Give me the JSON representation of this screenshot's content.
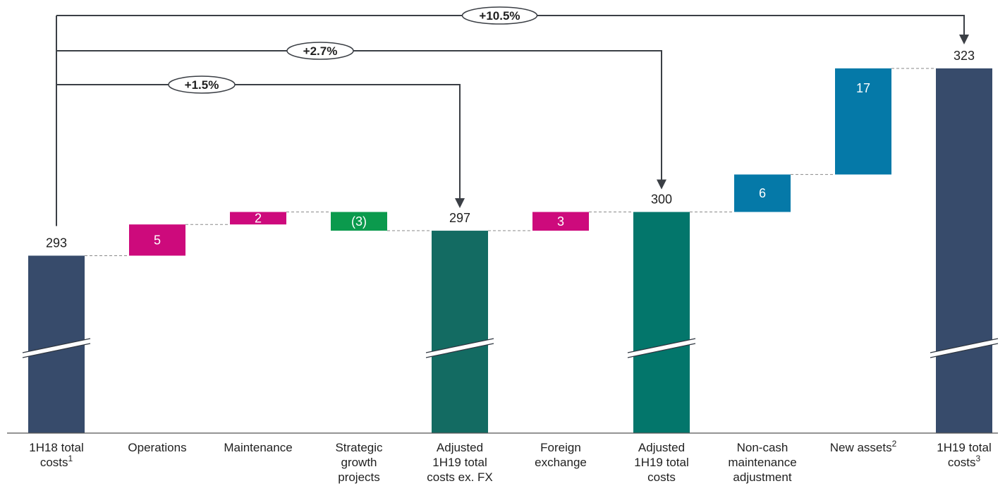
{
  "chart_data": {
    "type": "waterfall",
    "axis_break": true,
    "grid": false,
    "colors": {
      "total_dark": "#374b6b",
      "total_teal_dark": "#136b62",
      "total_teal": "#03766b",
      "increase_magenta": "#cd0a7c",
      "decrease_green": "#0b9a4d",
      "increase_blue": "#0579a8",
      "connector": "#8a8a8a",
      "bracket": "#3b3f45"
    },
    "categories": [
      {
        "label": "1H18 total costs",
        "label_lines": [
          "1H18 total",
          "costs"
        ],
        "superscript": "1",
        "kind": "total",
        "color_key": "total_dark",
        "value": 293,
        "label_text": "293",
        "label_pos": "above"
      },
      {
        "label": "Operations",
        "label_lines": [
          "Operations"
        ],
        "superscript": "",
        "kind": "delta",
        "color_key": "increase_magenta",
        "value": 5,
        "label_text": "5",
        "label_pos": "inside"
      },
      {
        "label": "Maintenance",
        "label_lines": [
          "Maintenance"
        ],
        "superscript": "",
        "kind": "delta",
        "color_key": "increase_magenta",
        "value": 2,
        "label_text": "2",
        "label_pos": "inside"
      },
      {
        "label": "Strategic growth projects",
        "label_lines": [
          "Strategic",
          "growth",
          "projects"
        ],
        "superscript": "",
        "kind": "delta",
        "color_key": "decrease_green",
        "value": -3,
        "label_text": "(3)",
        "label_pos": "inside"
      },
      {
        "label": "Adjusted 1H19 total costs ex. FX",
        "label_lines": [
          "Adjusted",
          "1H19 total",
          "costs ex. FX"
        ],
        "superscript": "",
        "kind": "total",
        "color_key": "total_teal_dark",
        "value": 297,
        "label_text": "297",
        "label_pos": "above"
      },
      {
        "label": "Foreign exchange",
        "label_lines": [
          "Foreign",
          "exchange"
        ],
        "superscript": "",
        "kind": "delta",
        "color_key": "increase_magenta",
        "value": 3,
        "label_text": "3",
        "label_pos": "inside"
      },
      {
        "label": "Adjusted 1H19 total costs",
        "label_lines": [
          "Adjusted",
          "1H19 total",
          "costs"
        ],
        "superscript": "",
        "kind": "total",
        "color_key": "total_teal",
        "value": 300,
        "label_text": "300",
        "label_pos": "above"
      },
      {
        "label": "Non-cash maintenance adjustment",
        "label_lines": [
          "Non-cash",
          "maintenance",
          "adjustment"
        ],
        "superscript": "",
        "kind": "delta",
        "color_key": "increase_blue",
        "value": 6,
        "label_text": "6",
        "label_pos": "inside"
      },
      {
        "label": "New assets",
        "label_lines": [
          "New assets"
        ],
        "superscript": "2",
        "kind": "delta",
        "color_key": "increase_blue",
        "value": 17,
        "label_text": "17",
        "label_pos": "inside"
      },
      {
        "label": "1H19 total costs",
        "label_lines": [
          "1H19 total",
          "costs"
        ],
        "superscript": "3",
        "kind": "total",
        "color_key": "total_dark",
        "value": 323,
        "label_text": "323",
        "label_pos": "above"
      }
    ],
    "annotations": [
      {
        "text": "+10.5%",
        "from": "1H18 total costs",
        "to": "1H19 total costs"
      },
      {
        "text": "+2.7%",
        "from": "1H18 total costs",
        "to": "Adjusted 1H19 total costs"
      },
      {
        "text": "+1.5%",
        "from": "1H18 total costs",
        "to": "Adjusted 1H19 total costs ex. FX"
      }
    ]
  }
}
